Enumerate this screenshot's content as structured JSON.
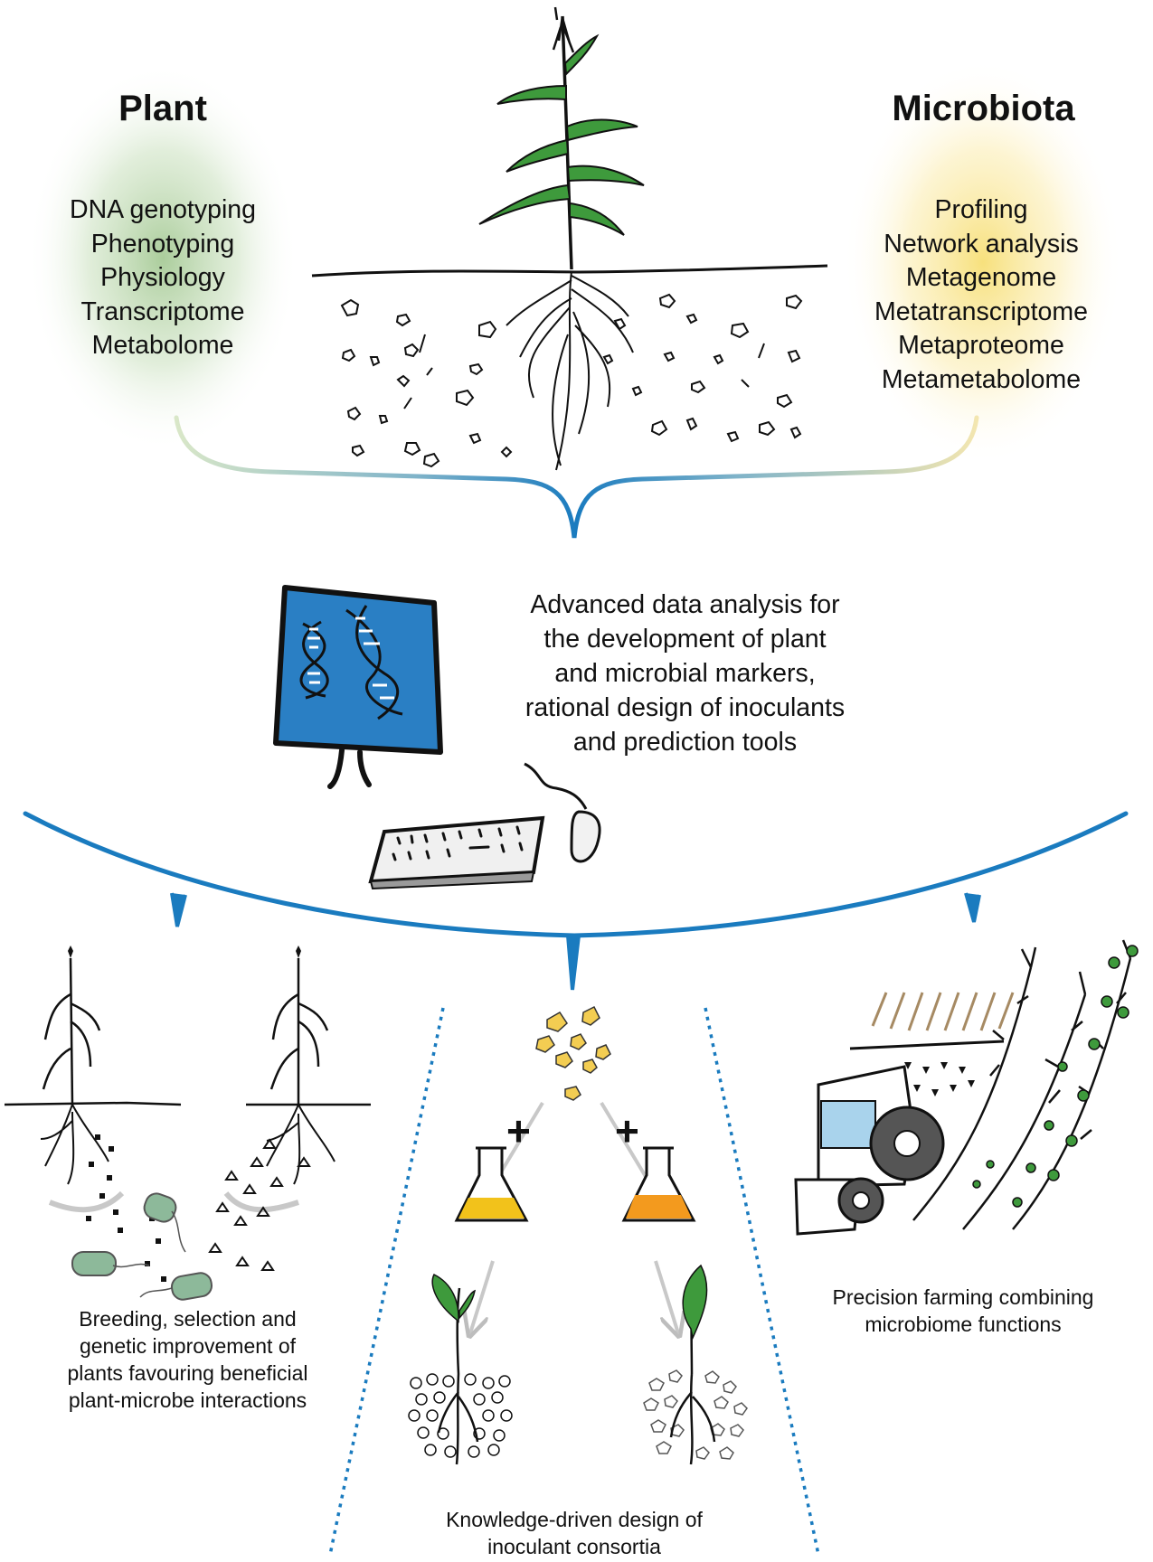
{
  "plant_panel": {
    "heading": "Plant",
    "items": [
      "DNA genotyping",
      "Phenotyping",
      "Physiology",
      "Transcriptome",
      "Metabolome"
    ]
  },
  "microbiota_panel": {
    "heading": "Microbiota",
    "items": [
      "Profiling",
      "Network analysis",
      "Metagenome",
      "Metatranscriptome",
      "Metaproteome",
      "Metametabolome"
    ]
  },
  "analysis": {
    "text": "Advanced data analysis for the development of plant and microbial markers, rational design of inoculants and prediction tools"
  },
  "outcomes": {
    "breeding": "Breeding, selection and genetic improvement of plants favouring beneficial plant-microbe interactions",
    "inoculants": "Knowledge-driven design of inoculant consortia",
    "precision": "Precision farming combining microbiome functions",
    "plus_sign": "+"
  },
  "colors": {
    "plant_glow": "#9cc48a",
    "microbiota_glow": "#f6dd6e",
    "bracket_blue": "#1a7bbf",
    "screen_blue": "#2a7fc4",
    "leaf_green": "#3e9a3c",
    "flask_yellow": "#f2c21b",
    "flask_orange": "#f39a1e",
    "seed_yellow": "#f3cd52",
    "microbe_green": "#8db99a",
    "tractor_window": "#a9d3ec"
  }
}
